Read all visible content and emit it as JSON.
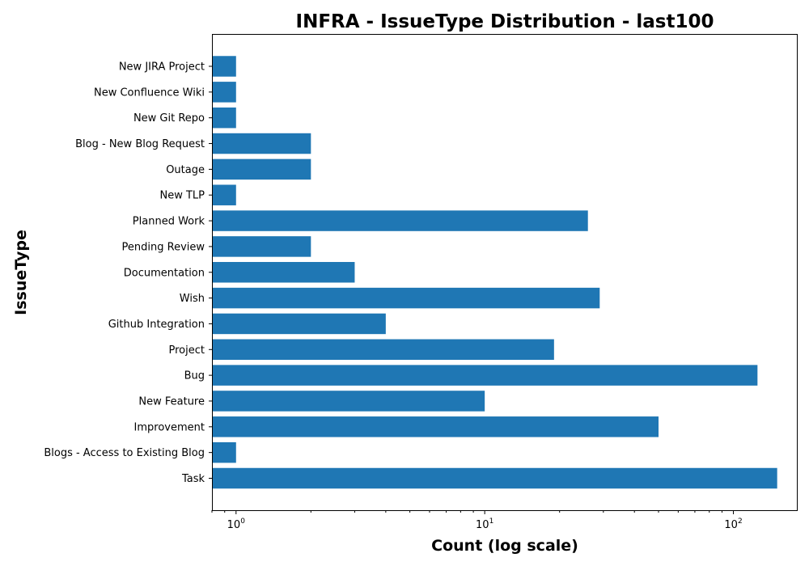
{
  "chart_data": {
    "type": "bar",
    "orientation": "horizontal",
    "title": "INFRA - IssueType Distribution - last100",
    "xlabel": "Count (log scale)",
    "ylabel": "IssueType",
    "xscale": "log",
    "xlim": [
      0.8,
      180
    ],
    "xticks": [
      {
        "value": 1,
        "base": "10",
        "exp": "0"
      },
      {
        "value": 10,
        "base": "10",
        "exp": "1"
      },
      {
        "value": 100,
        "base": "10",
        "exp": "2"
      }
    ],
    "bar_color": "#1f77b4",
    "grid": false,
    "categories": [
      "Task",
      "Blogs - Access to Existing Blog",
      "Improvement",
      "New Feature",
      "Bug",
      "Project",
      "Github Integration",
      "Wish",
      "Documentation",
      "Pending Review",
      "Planned Work",
      "New TLP ",
      "Outage",
      "Blog - New Blog Request",
      "New Git Repo",
      "New Confluence Wiki",
      "New JIRA Project"
    ],
    "values": [
      150,
      1,
      50,
      10,
      125,
      19,
      4,
      29,
      3,
      2,
      26,
      1,
      2,
      2,
      1,
      1,
      1
    ]
  }
}
